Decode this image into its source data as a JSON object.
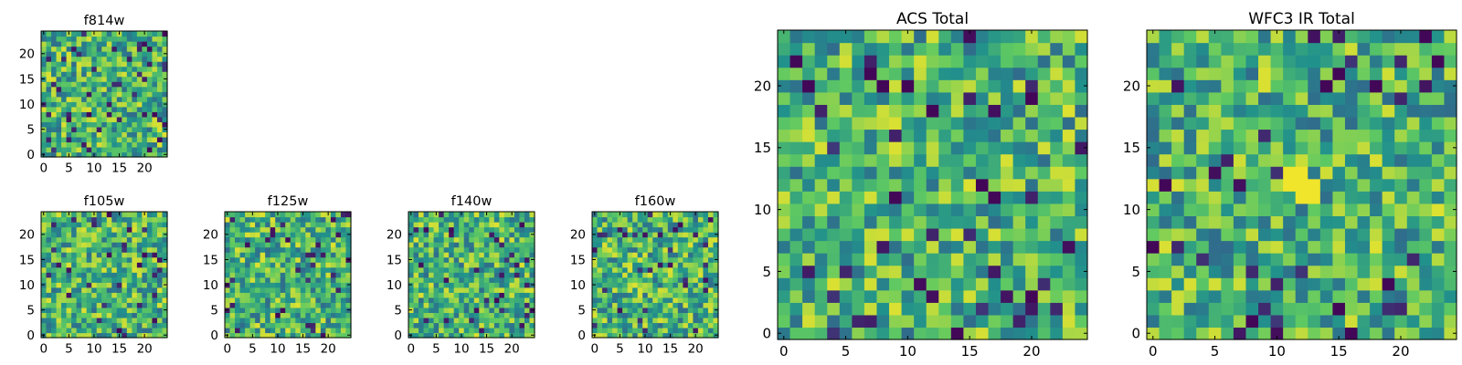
{
  "chart_data": [
    {
      "type": "heatmap",
      "title": "f814w",
      "grid_size": 25,
      "xlim": [
        0,
        25
      ],
      "ylim": [
        0,
        25
      ],
      "xticks": [
        0,
        5,
        10,
        15,
        20
      ],
      "yticks": [
        0,
        5,
        10,
        15,
        20
      ],
      "colormap": "viridis",
      "seed": 814
    },
    {
      "type": "heatmap",
      "title": "f105w",
      "grid_size": 25,
      "xlim": [
        0,
        25
      ],
      "ylim": [
        0,
        25
      ],
      "xticks": [
        0,
        5,
        10,
        15,
        20
      ],
      "yticks": [
        0,
        5,
        10,
        15,
        20
      ],
      "colormap": "viridis",
      "seed": 105
    },
    {
      "type": "heatmap",
      "title": "f125w",
      "grid_size": 25,
      "xlim": [
        0,
        25
      ],
      "ylim": [
        0,
        25
      ],
      "xticks": [
        0,
        5,
        10,
        15,
        20
      ],
      "yticks": [
        0,
        5,
        10,
        15,
        20
      ],
      "colormap": "viridis",
      "seed": 125
    },
    {
      "type": "heatmap",
      "title": "f140w",
      "grid_size": 25,
      "xlim": [
        0,
        25
      ],
      "ylim": [
        0,
        25
      ],
      "xticks": [
        0,
        5,
        10,
        15,
        20
      ],
      "yticks": [
        0,
        5,
        10,
        15,
        20
      ],
      "colormap": "viridis",
      "seed": 140
    },
    {
      "type": "heatmap",
      "title": "f160w",
      "grid_size": 25,
      "xlim": [
        0,
        25
      ],
      "ylim": [
        0,
        25
      ],
      "xticks": [
        0,
        5,
        10,
        15,
        20
      ],
      "yticks": [
        0,
        5,
        10,
        15,
        20
      ],
      "colormap": "viridis",
      "seed": 160
    },
    {
      "type": "heatmap",
      "title": "ACS Total",
      "grid_size": 25,
      "xlim": [
        0,
        25
      ],
      "ylim": [
        0,
        25
      ],
      "xticks": [
        0,
        5,
        10,
        15,
        20
      ],
      "yticks": [
        0,
        5,
        10,
        15,
        20
      ],
      "colormap": "viridis",
      "seed": 901,
      "low_cells": [
        [
          9,
          11
        ],
        [
          12,
          18
        ],
        [
          17,
          11
        ],
        [
          2,
          20
        ],
        [
          7,
          21
        ],
        [
          8,
          20
        ],
        [
          10,
          20
        ],
        [
          20,
          19
        ],
        [
          16,
          12
        ],
        [
          20,
          3
        ],
        [
          14,
          0
        ]
      ]
    },
    {
      "type": "heatmap",
      "title": "WFC3 IR Total",
      "grid_size": 25,
      "xlim": [
        0,
        25
      ],
      "ylim": [
        0,
        25
      ],
      "xticks": [
        0,
        5,
        10,
        15,
        20
      ],
      "yticks": [
        0,
        5,
        10,
        15,
        20
      ],
      "colormap": "viridis",
      "seed": 902,
      "low_cells": [
        [
          0,
          7
        ],
        [
          1,
          12
        ],
        [
          14,
          20
        ],
        [
          15,
          21
        ],
        [
          18,
          20
        ],
        [
          23,
          22
        ],
        [
          22,
          24
        ],
        [
          19,
          4
        ],
        [
          8,
          1
        ],
        [
          15,
          2
        ],
        [
          16,
          0
        ]
      ],
      "high_cells": [
        [
          11,
          12
        ],
        [
          12,
          12
        ],
        [
          13,
          12
        ],
        [
          11,
          13
        ],
        [
          12,
          13
        ],
        [
          12,
          11
        ],
        [
          13,
          11
        ]
      ]
    }
  ],
  "colors": {
    "viridis_stops": [
      "#440154",
      "#3b528b",
      "#21918c",
      "#5ec962",
      "#fde725"
    ],
    "axes": "#000000",
    "background": "#ffffff"
  }
}
